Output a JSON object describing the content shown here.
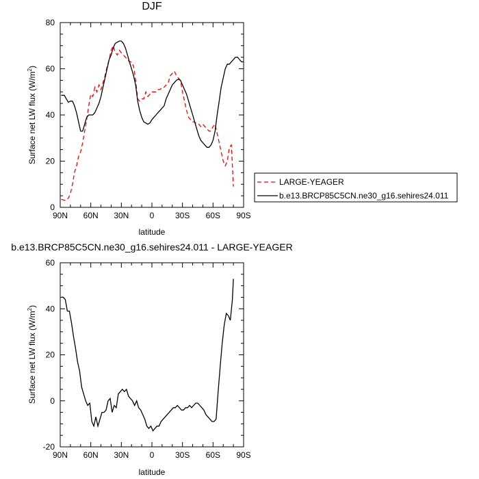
{
  "chart_data": [
    {
      "type": "line",
      "title": "DJF",
      "xlabel": "latitude",
      "ylabel": "Surface net LW flux (W/m²)",
      "ylabel_main": "Surface net LW flux (W/m",
      "ylabel_sup": "2",
      "ylabel_close": ")",
      "xlim": [
        90,
        -90
      ],
      "ylim": [
        0,
        80
      ],
      "yticks": [
        0,
        20,
        40,
        60,
        80
      ],
      "xticks": [
        {
          "value": 90,
          "label": "90N"
        },
        {
          "value": 60,
          "label": "60N"
        },
        {
          "value": 30,
          "label": "30N"
        },
        {
          "value": 0,
          "label": "0"
        },
        {
          "value": -30,
          "label": "30S"
        },
        {
          "value": -60,
          "label": "60S"
        },
        {
          "value": -90,
          "label": "90S"
        }
      ],
      "legend_position": "right",
      "series": [
        {
          "name": "LARGE-YEAGER",
          "color": "#ff0000",
          "dashed": true,
          "x": [
            89,
            85,
            82,
            80,
            78,
            76,
            74,
            72,
            70,
            68,
            66,
            64,
            62,
            60,
            58,
            56,
            54,
            52,
            50,
            48,
            46,
            44,
            42,
            40,
            38,
            36,
            34,
            32,
            30,
            28,
            26,
            24,
            22,
            20,
            18,
            16,
            14,
            12,
            10,
            8,
            6,
            4,
            2,
            0,
            -2,
            -4,
            -6,
            -8,
            -10,
            -12,
            -14,
            -16,
            -18,
            -20,
            -22,
            -24,
            -26,
            -28,
            -30,
            -32,
            -34,
            -36,
            -38,
            -40,
            -42,
            -44,
            -46,
            -48,
            -50,
            -52,
            -54,
            -56,
            -58,
            -60,
            -62,
            -64,
            -66,
            -68,
            -70,
            -72,
            -74,
            -76,
            -78,
            -80
          ],
          "values": [
            3.5,
            3,
            4,
            6,
            10,
            15,
            18,
            22,
            24,
            28,
            33,
            38,
            44,
            49,
            48,
            52,
            50,
            53,
            51,
            54,
            57,
            61,
            64,
            68,
            70,
            67,
            66,
            68,
            67,
            66,
            65,
            64,
            63,
            63,
            61,
            55,
            47,
            46,
            47,
            47,
            50,
            48,
            49,
            50,
            50,
            50,
            51,
            51,
            52,
            52,
            53,
            54,
            57,
            58,
            59,
            57,
            56,
            55,
            50,
            46,
            42,
            39,
            38,
            37,
            37,
            36,
            36,
            35,
            36,
            35,
            34,
            33,
            33,
            35,
            36,
            32,
            28,
            24,
            20,
            18,
            20,
            26,
            27,
            9
          ]
        },
        {
          "name": "b.e13.BRCP85C5CN.ne30_g16.sehires24.011",
          "color": "#000000",
          "dashed": false,
          "x": [
            89,
            86,
            84,
            82,
            80,
            78,
            76,
            74,
            72,
            70,
            68,
            66,
            64,
            62,
            60,
            58,
            56,
            54,
            52,
            50,
            48,
            46,
            44,
            42,
            40,
            38,
            36,
            34,
            32,
            30,
            28,
            26,
            24,
            22,
            20,
            18,
            16,
            14,
            12,
            10,
            8,
            6,
            4,
            2,
            0,
            -2,
            -4,
            -6,
            -8,
            -10,
            -12,
            -14,
            -16,
            -18,
            -20,
            -22,
            -24,
            -26,
            -28,
            -30,
            -32,
            -34,
            -36,
            -38,
            -40,
            -42,
            -44,
            -46,
            -48,
            -50,
            -52,
            -54,
            -56,
            -58,
            -60,
            -62,
            -64,
            -66,
            -68,
            -70,
            -72,
            -74,
            -76,
            -78,
            -80,
            -82,
            -84,
            -86,
            -88,
            -90
          ],
          "values": [
            48.5,
            48.5,
            47,
            45.5,
            46,
            46,
            44,
            41,
            37,
            33,
            33,
            36,
            39,
            40,
            40,
            40,
            41,
            43,
            45,
            48,
            52,
            56,
            60,
            64,
            66,
            69,
            71,
            71.5,
            72,
            72,
            71,
            69,
            66,
            63,
            60,
            57,
            53,
            46,
            42,
            39,
            37,
            36.5,
            36,
            36.5,
            38,
            39,
            40,
            41,
            42,
            43,
            44,
            47,
            49,
            51,
            53,
            54,
            55,
            55.5,
            55,
            53,
            51,
            49,
            46,
            43,
            40,
            37,
            34,
            31,
            29,
            28,
            27,
            26,
            26,
            27,
            29,
            33,
            40,
            46,
            52,
            56,
            60,
            62,
            62,
            63,
            64,
            65,
            65,
            64,
            63,
            63
          ]
        }
      ]
    },
    {
      "type": "line",
      "title": "b.e13.BRCP85C5CN.ne30_g16.sehires24.011 - LARGE-YEAGER",
      "xlabel": "latitude",
      "ylabel": "Surface net LW flux (W/m²)",
      "ylabel_main": "Surface net LW flux (W/m",
      "ylabel_sup": "2",
      "ylabel_close": ")",
      "xlim": [
        90,
        -90
      ],
      "ylim": [
        -20,
        60
      ],
      "yticks": [
        -20,
        0,
        20,
        40,
        60
      ],
      "xticks": [
        {
          "value": 90,
          "label": "90N"
        },
        {
          "value": 60,
          "label": "60N"
        },
        {
          "value": 30,
          "label": "30N"
        },
        {
          "value": 0,
          "label": "0"
        },
        {
          "value": -30,
          "label": "30S"
        },
        {
          "value": -60,
          "label": "60S"
        },
        {
          "value": -90,
          "label": "90S"
        }
      ],
      "series": [
        {
          "name": "",
          "color": "#000000",
          "dashed": false,
          "x": [
            89,
            87,
            85,
            83,
            81,
            79,
            77,
            75,
            73,
            71,
            69,
            67,
            65,
            63,
            61,
            59,
            57,
            55,
            53,
            51,
            49,
            47,
            45,
            43,
            41,
            39,
            37,
            35,
            33,
            31,
            29,
            27,
            25,
            23,
            21,
            19,
            17,
            15,
            13,
            11,
            9,
            7,
            5,
            3,
            1,
            -1,
            -3,
            -5,
            -7,
            -9,
            -11,
            -13,
            -15,
            -17,
            -19,
            -21,
            -23,
            -25,
            -27,
            -29,
            -31,
            -33,
            -35,
            -37,
            -39,
            -41,
            -43,
            -45,
            -47,
            -49,
            -51,
            -53,
            -55,
            -57,
            -59,
            -61,
            -63,
            -65,
            -67,
            -69,
            -71,
            -73,
            -75,
            -77,
            -79,
            -80
          ],
          "values": [
            45,
            45,
            44,
            39,
            39,
            34,
            28,
            23,
            17,
            13,
            6,
            3,
            0,
            -2,
            -1,
            -9,
            -11,
            -7,
            -11,
            -8,
            -5,
            -5,
            -4,
            0,
            1,
            -5,
            -2,
            -3,
            3,
            4,
            5,
            4,
            5,
            2,
            1,
            0,
            -2,
            0,
            -3,
            -4,
            -6,
            -8,
            -11,
            -12,
            -11,
            -13,
            -12,
            -11,
            -11,
            -9,
            -8,
            -7,
            -6,
            -5,
            -4,
            -3,
            -3,
            -2,
            -3,
            -4,
            -4,
            -3,
            -3,
            -2,
            -3,
            -2,
            -1,
            -1,
            -2,
            -3,
            -4,
            -6,
            -7,
            -8,
            -9,
            -9,
            -8,
            4,
            15,
            25,
            33,
            38,
            37,
            35,
            44,
            53
          ]
        }
      ]
    }
  ]
}
